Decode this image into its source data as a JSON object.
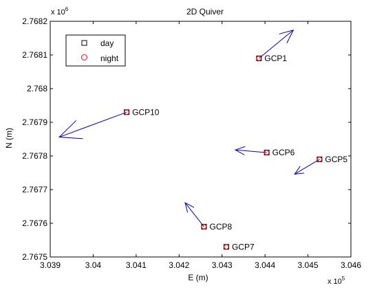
{
  "chart_data": {
    "type": "scatter",
    "title": "2D Quiver",
    "xlabel": "E (m)",
    "ylabel": "N (m)",
    "x_multiplier_label": "x 10",
    "x_multiplier_exp": "5",
    "y_multiplier_label": "x 10",
    "y_multiplier_exp": "6",
    "xlim": [
      3.039,
      3.046
    ],
    "ylim": [
      2.7675,
      2.7682
    ],
    "xticks": [
      3.039,
      3.04,
      3.041,
      3.042,
      3.043,
      3.044,
      3.045,
      3.046
    ],
    "xtick_labels": [
      "3.039",
      "3.04",
      "3.041",
      "3.042",
      "3.043",
      "3.044",
      "3.045",
      "3.046"
    ],
    "yticks": [
      2.7675,
      2.7676,
      2.7677,
      2.7678,
      2.7679,
      2.768,
      2.7681,
      2.7682
    ],
    "ytick_labels": [
      "2.7675",
      "2.7676",
      "2.7677",
      "2.7678",
      "2.7679",
      "2.768",
      "2.7681",
      "2.7682"
    ],
    "grid": false,
    "legend_position": "top-left",
    "legend": [
      {
        "label": "day",
        "marker": "square",
        "color": "#000000"
      },
      {
        "label": "night",
        "marker": "circle",
        "color": "#ff0000"
      }
    ],
    "arrow_color": "#0000aa",
    "points": [
      {
        "label": "GCP1",
        "x": 3.04386,
        "y": 2.76809,
        "u": 0.0008,
        "v": 8.4e-05
      },
      {
        "label": "GCP10",
        "x": 3.04078,
        "y": 2.76793,
        "u": -0.00157,
        "v": -7.4e-05
      },
      {
        "label": "GCP6",
        "x": 3.04404,
        "y": 2.76781,
        "u": -0.00073,
        "v": 8e-06
      },
      {
        "label": "GCP5",
        "x": 3.04527,
        "y": 2.76779,
        "u": -0.00058,
        "v": -4.4e-05
      },
      {
        "label": "GCP8",
        "x": 3.04258,
        "y": 2.76759,
        "u": -0.00044,
        "v": 7.1e-05
      },
      {
        "label": "GCP7",
        "x": 3.0431,
        "y": 2.76753,
        "u": 0,
        "v": 0
      }
    ]
  }
}
